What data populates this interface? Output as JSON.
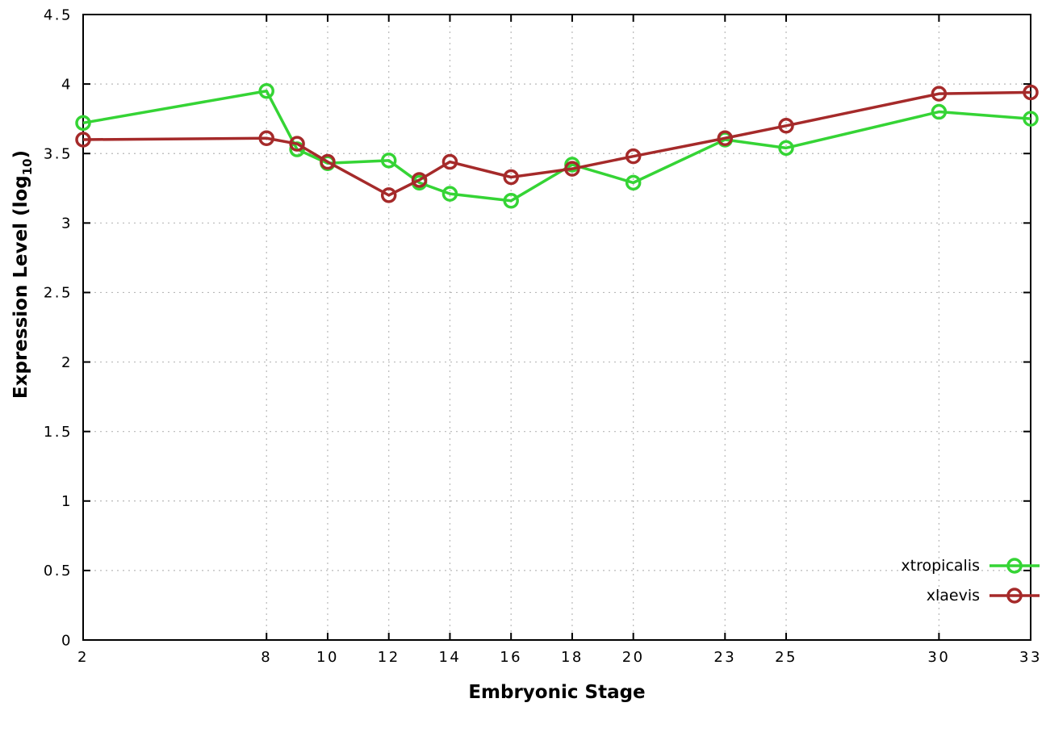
{
  "chart_data": {
    "type": "line",
    "title": "",
    "xlabel": "Embryonic Stage",
    "ylabel": "Expression Level (log10)",
    "ylabel_parts": {
      "prefix": "Expression Level (log",
      "sub": "10",
      "suffix": ")"
    },
    "xlim": [
      2,
      33
    ],
    "ylim": [
      0,
      4.5
    ],
    "xticks": [
      2,
      8,
      10,
      12,
      14,
      16,
      18,
      20,
      23,
      25,
      30,
      33
    ],
    "yticks": [
      0,
      0.5,
      1,
      1.5,
      2,
      2.5,
      3,
      3.5,
      4,
      4.5
    ],
    "grid": true,
    "grid_color": "#b8b8b8",
    "border_color": "#000000",
    "legend_position": "bottom-right",
    "marker": "open-circle",
    "x": [
      2,
      8,
      9,
      10,
      12,
      13,
      14,
      16,
      18,
      20,
      23,
      25,
      30,
      33
    ],
    "series": [
      {
        "name": "xtropicalis",
        "color": "#35d435",
        "values": [
          3.72,
          3.95,
          3.53,
          3.43,
          3.45,
          3.29,
          3.21,
          3.16,
          3.42,
          3.29,
          3.6,
          3.54,
          3.8,
          3.75
        ]
      },
      {
        "name": "xlaevis",
        "color": "#a52a2a",
        "values": [
          3.6,
          3.61,
          3.57,
          3.44,
          3.2,
          3.31,
          3.44,
          3.33,
          3.39,
          3.48,
          3.61,
          3.7,
          3.93,
          3.94
        ]
      }
    ]
  }
}
